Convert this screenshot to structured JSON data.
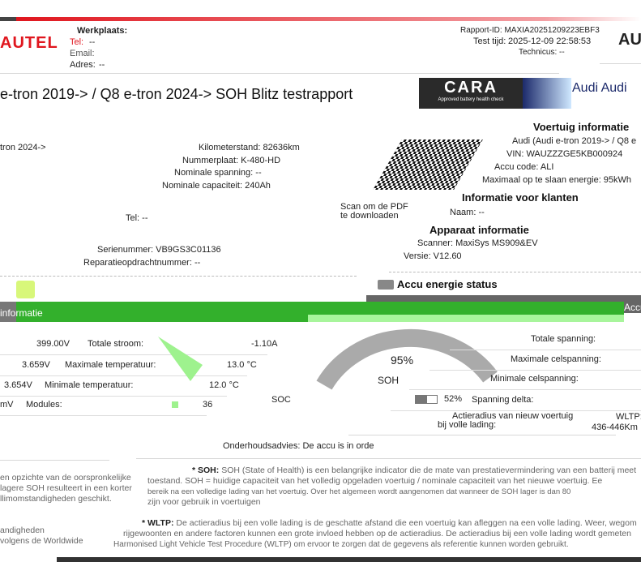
{
  "header": {
    "logo": "AUTEL",
    "workshop_label": "Werkplaats:",
    "tel_label": "Tel:",
    "tel_value": "--",
    "email_label": "Email:",
    "address_label": "Adres:",
    "address_value": "--",
    "report_id": "Rapport-ID: MAXIA20251209223EBF3",
    "test_time_label": "Test tijd:",
    "test_time_value": "2025-12-09 22:58:53",
    "technician": "Technicus: --",
    "brand_logo": "AUDI"
  },
  "title": "e-tron 2019-> / Q8 e-tron 2024-> SOH Blitz testrapport",
  "cara": {
    "logo": "CARA",
    "tagline": "Approved battery health check",
    "brand_text": "Audi Audi"
  },
  "left_info": {
    "model_fragment": "tron 2024->",
    "mileage": "Kilometerstand: 82636km",
    "plate": "Nummerplaat: K-480-HD",
    "nominal_voltage": "Nominale spanning: --",
    "nominal_capacity": "Nominale capaciteit: 240Ah",
    "tel": "Tel: --",
    "serial": "Serienummer: VB9GS3C01136",
    "repair_order": "Reparatieopdrachtnummer: --"
  },
  "qr": {
    "caption_1": "Scan om de PDF",
    "caption_2": "te downloaden"
  },
  "vehicle": {
    "heading": "Voertuig informatie",
    "model": "Audi (Audi e-tron 2019-> / Q8 e",
    "vin": "VIN: WAUZZZGE5KB000924",
    "battery_code": "Accu code: ALI",
    "max_energy": "Maximaal op te slaan energie: 95kWh"
  },
  "customer": {
    "heading": "Informatie voor klanten",
    "name": "Naam: --"
  },
  "device": {
    "heading": "Apparaat informatie",
    "scanner": "Scanner: MaxiSys MS909&EV",
    "version": "Versie: V12.60"
  },
  "energy_status": {
    "heading": "Accu energie status"
  },
  "section_bar": {
    "left_label": "informatie",
    "right_label": "Accu",
    "color": "#33b02c"
  },
  "left_table": [
    {
      "value_left": "399.00V",
      "label": "Totale stroom:",
      "value": "-1.10A"
    },
    {
      "value_left": "3.659V",
      "label": "Maximale temperatuur:",
      "value": "13.0 °C"
    },
    {
      "value_left": "3.654V",
      "label": "Minimale temperatuur:",
      "value": "12.0 °C"
    },
    {
      "value_left": "mV",
      "label": "Modules:",
      "value": "36"
    }
  ],
  "gauge": {
    "soh_value": "95%",
    "soh_label": "SOH",
    "soh_fraction": 0.95,
    "soc_value": "52%",
    "soc_label": "SOC",
    "soc_fraction": 0.52
  },
  "right_table": [
    {
      "label": "Totale spanning:"
    },
    {
      "label": "Maximale celspanning:"
    },
    {
      "label": "Minimale celspanning:"
    },
    {
      "label": "Spanning delta:"
    }
  ],
  "range": {
    "label_1": "Actieradius van nieuw voertuig",
    "label_2": "bij volle lading:",
    "standard": "WLTP:",
    "value": "436-446Km"
  },
  "advice": "Onderhoudsadvies: De accu is in orde",
  "footnotes": {
    "left_1": "en opzichte van de oorspronkelijke",
    "left_2": "lagere SOH resulteert in een korter",
    "left_3": "llimomstandigheden geschikt.",
    "left_4": "andigheden",
    "left_5": "volgens de Worldwide",
    "soh_key": "* SOH:",
    "soh_1": "SOH (State of Health) is een belangrijke indicator die de mate van prestatievermindering van een batterij meet",
    "soh_2": "toestand. SOH = huidige capaciteit van het volledig opgeladen voertuig / nominale capaciteit van het nieuwe voertuig. Ee",
    "soh_3": "bereik na een volledige lading van het voertuig. Over het algemeen wordt aangenomen dat wanneer de SOH lager is dan 80",
    "soh_4": "zijn voor gebruik in voertuigen",
    "wltp_key": "* WLTP:",
    "wltp_1": "De actieradius bij een volle lading is de geschatte afstand die een voertuig kan afleggen na een volle lading. Weer, wegom",
    "wltp_2": "rijgewoonten en andere factoren kunnen een grote invloed hebben op de actieradius. De actieradius bij een volle lading wordt gemeten",
    "wltp_3": "Harmonised Light Vehicle Test Procedure (WLTP) om ervoor te zorgen dat de gegevens als referentie kunnen worden gebruikt."
  }
}
